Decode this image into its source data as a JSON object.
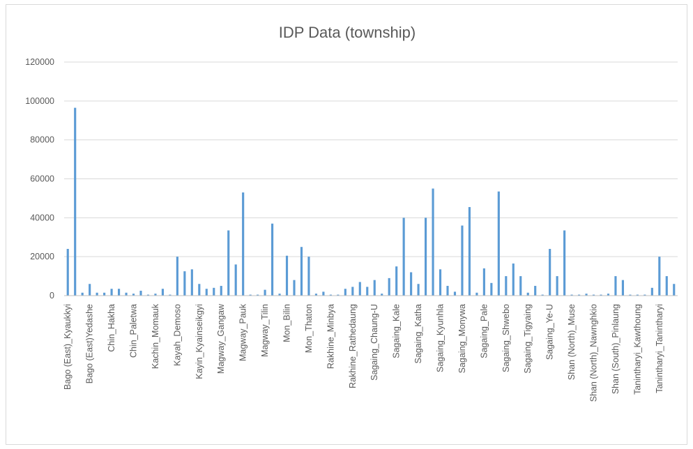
{
  "chart_data": {
    "type": "bar",
    "title": "IDP Data (township)",
    "xlabel": "",
    "ylabel": "",
    "ylim": [
      0,
      120000
    ],
    "yticks": [
      0,
      20000,
      40000,
      60000,
      80000,
      100000,
      120000
    ],
    "grid": true,
    "legend": "none",
    "bar_color": "#5b9bd5",
    "category_labels": [
      "Bago (East)_Kyaukkyi",
      "Bago (East)Yedashe",
      "Chin_Hakha",
      "Chin_Paletwa",
      "Kachin_Momauk",
      "Kayah_Demoso",
      "Kayin_Kyainseikgyi",
      "Magway_Gangaw",
      "Magway_Pauk",
      "Magway_Tilin",
      "Mon_Bilin",
      "Mon_Thaton",
      "Rakhine_Minbya",
      "Rakhine_Rathedaung",
      "Sagaing_Chaung-U",
      "Sagaing_Kale",
      "Sagaing_Katha",
      "Sagaing_Kyunhla",
      "Sagaing_Monywa",
      "Sagaing_Pale",
      "Sagaing_Shwebo",
      "Sagaing_Tigyaing",
      "Sagaing_Ye-U",
      "Shan (North)_Muse",
      "Shan (North)_Nawnghkio",
      "Shan (South)_Pinlaung",
      "Tanintharyi_Kawthoung",
      "Tanintharyi_Tanintharyi"
    ],
    "label_every": 3,
    "values": [
      24000,
      96500,
      1500,
      6000,
      1500,
      1500,
      3500,
      3500,
      1500,
      1000,
      2500,
      500,
      1000,
      3500,
      500,
      20000,
      12500,
      13500,
      6000,
      3500,
      4000,
      5000,
      33500,
      16000,
      53000,
      500,
      500,
      3000,
      37000,
      1000,
      20500,
      8000,
      25000,
      20000,
      1000,
      2000,
      500,
      500,
      3500,
      4500,
      7000,
      4500,
      8000,
      1000,
      9000,
      15000,
      40000,
      12000,
      6000,
      40000,
      55000,
      13500,
      5000,
      2000,
      36000,
      45500,
      1500,
      14000,
      6500,
      53500,
      10000,
      16500,
      10000,
      1500,
      5000,
      500,
      24000,
      10000,
      33500,
      500,
      500,
      1000,
      500,
      500,
      1000,
      10000,
      8000,
      500,
      500,
      500,
      4000,
      20000,
      10000,
      6000
    ]
  }
}
